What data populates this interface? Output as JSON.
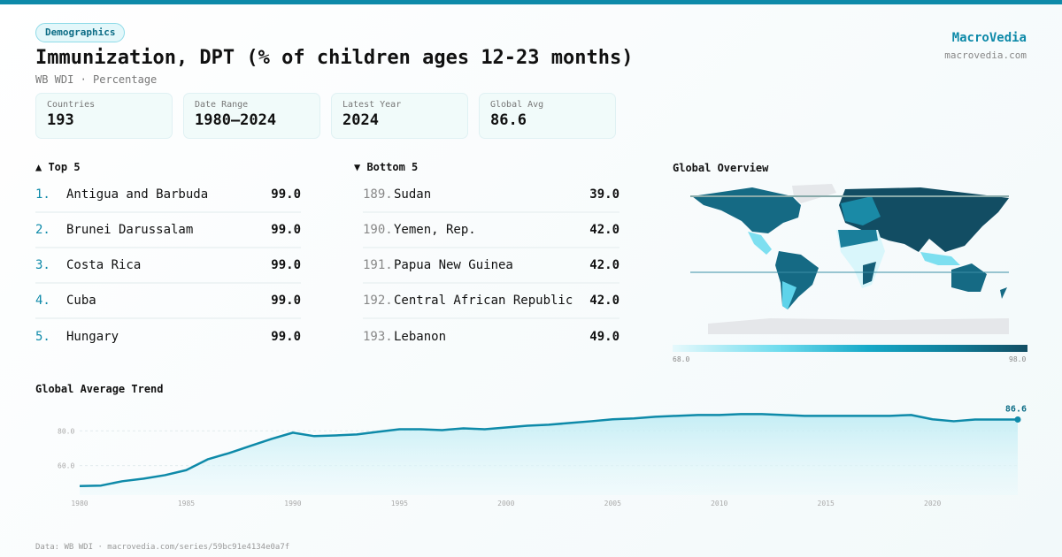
{
  "header": {
    "category": "Demographics",
    "title": "Immunization, DPT (% of children ages 12-23 months)",
    "subtitle": "WB WDI · Percentage",
    "brand": "MacroVedia",
    "brand_url": "macrovedia.com"
  },
  "stats": [
    {
      "label": "Countries",
      "value": "193"
    },
    {
      "label": "Date Range",
      "value": "1980–2024"
    },
    {
      "label": "Latest Year",
      "value": "2024"
    },
    {
      "label": "Global Avg",
      "value": "86.6"
    }
  ],
  "top": {
    "title": "▲ Top 5",
    "items": [
      {
        "rank": "1.",
        "name": "Antigua and Barbuda",
        "value": "99.0"
      },
      {
        "rank": "2.",
        "name": "Brunei Darussalam",
        "value": "99.0"
      },
      {
        "rank": "3.",
        "name": "Costa Rica",
        "value": "99.0"
      },
      {
        "rank": "4.",
        "name": "Cuba",
        "value": "99.0"
      },
      {
        "rank": "5.",
        "name": "Hungary",
        "value": "99.0"
      }
    ]
  },
  "bottom": {
    "title": "▼ Bottom 5",
    "items": [
      {
        "rank": "189.",
        "name": "Sudan",
        "value": "39.0"
      },
      {
        "rank": "190.",
        "name": "Yemen, Rep.",
        "value": "42.0"
      },
      {
        "rank": "191.",
        "name": "Papua New Guinea",
        "value": "42.0"
      },
      {
        "rank": "192.",
        "name": "Central African Republic",
        "value": "42.0"
      },
      {
        "rank": "193.",
        "name": "Lebanon",
        "value": "49.0"
      }
    ]
  },
  "map": {
    "title": "Global Overview",
    "legend_min": "68.0",
    "legend_max": "98.0",
    "colors": {
      "low": "#e6f9fc",
      "mid": "#16a9c8",
      "high": "#124d63",
      "nodata": "#e5e7ea"
    }
  },
  "chart_data": {
    "type": "area",
    "title": "Global Average Trend",
    "x": [
      1980,
      1981,
      1982,
      1983,
      1984,
      1985,
      1986,
      1987,
      1988,
      1989,
      1990,
      1991,
      1992,
      1993,
      1994,
      1995,
      1996,
      1997,
      1998,
      1999,
      2000,
      2001,
      2002,
      2003,
      2004,
      2005,
      2006,
      2007,
      2008,
      2009,
      2010,
      2011,
      2012,
      2013,
      2014,
      2015,
      2016,
      2017,
      2018,
      2019,
      2020,
      2021,
      2022,
      2023,
      2024
    ],
    "y": [
      48.2,
      48.5,
      51,
      52.5,
      54.5,
      57.4,
      63.6,
      67.2,
      71.3,
      75.4,
      79,
      77,
      77.4,
      78,
      79.5,
      81,
      81,
      80.5,
      81.5,
      81,
      82,
      83,
      83.6,
      84.6,
      85.6,
      86.7,
      87.2,
      88.2,
      88.7,
      89.2,
      89.2,
      89.7,
      89.7,
      89.2,
      88.7,
      88.7,
      88.7,
      88.7,
      88.7,
      89.2,
      86.7,
      85.6,
      86.6,
      86.6,
      86.6
    ],
    "xticks": [
      "1980",
      "1985",
      "1990",
      "1995",
      "2000",
      "2005",
      "2010",
      "2015",
      "2020"
    ],
    "yticks": [
      "60.0",
      "80.0"
    ],
    "ylim": [
      43,
      95
    ],
    "end_label": "86.6",
    "color": "#0e8aa9",
    "grid": true
  },
  "footer": "Data: WB WDI · macrovedia.com/series/59bc91e4134e0a7f"
}
